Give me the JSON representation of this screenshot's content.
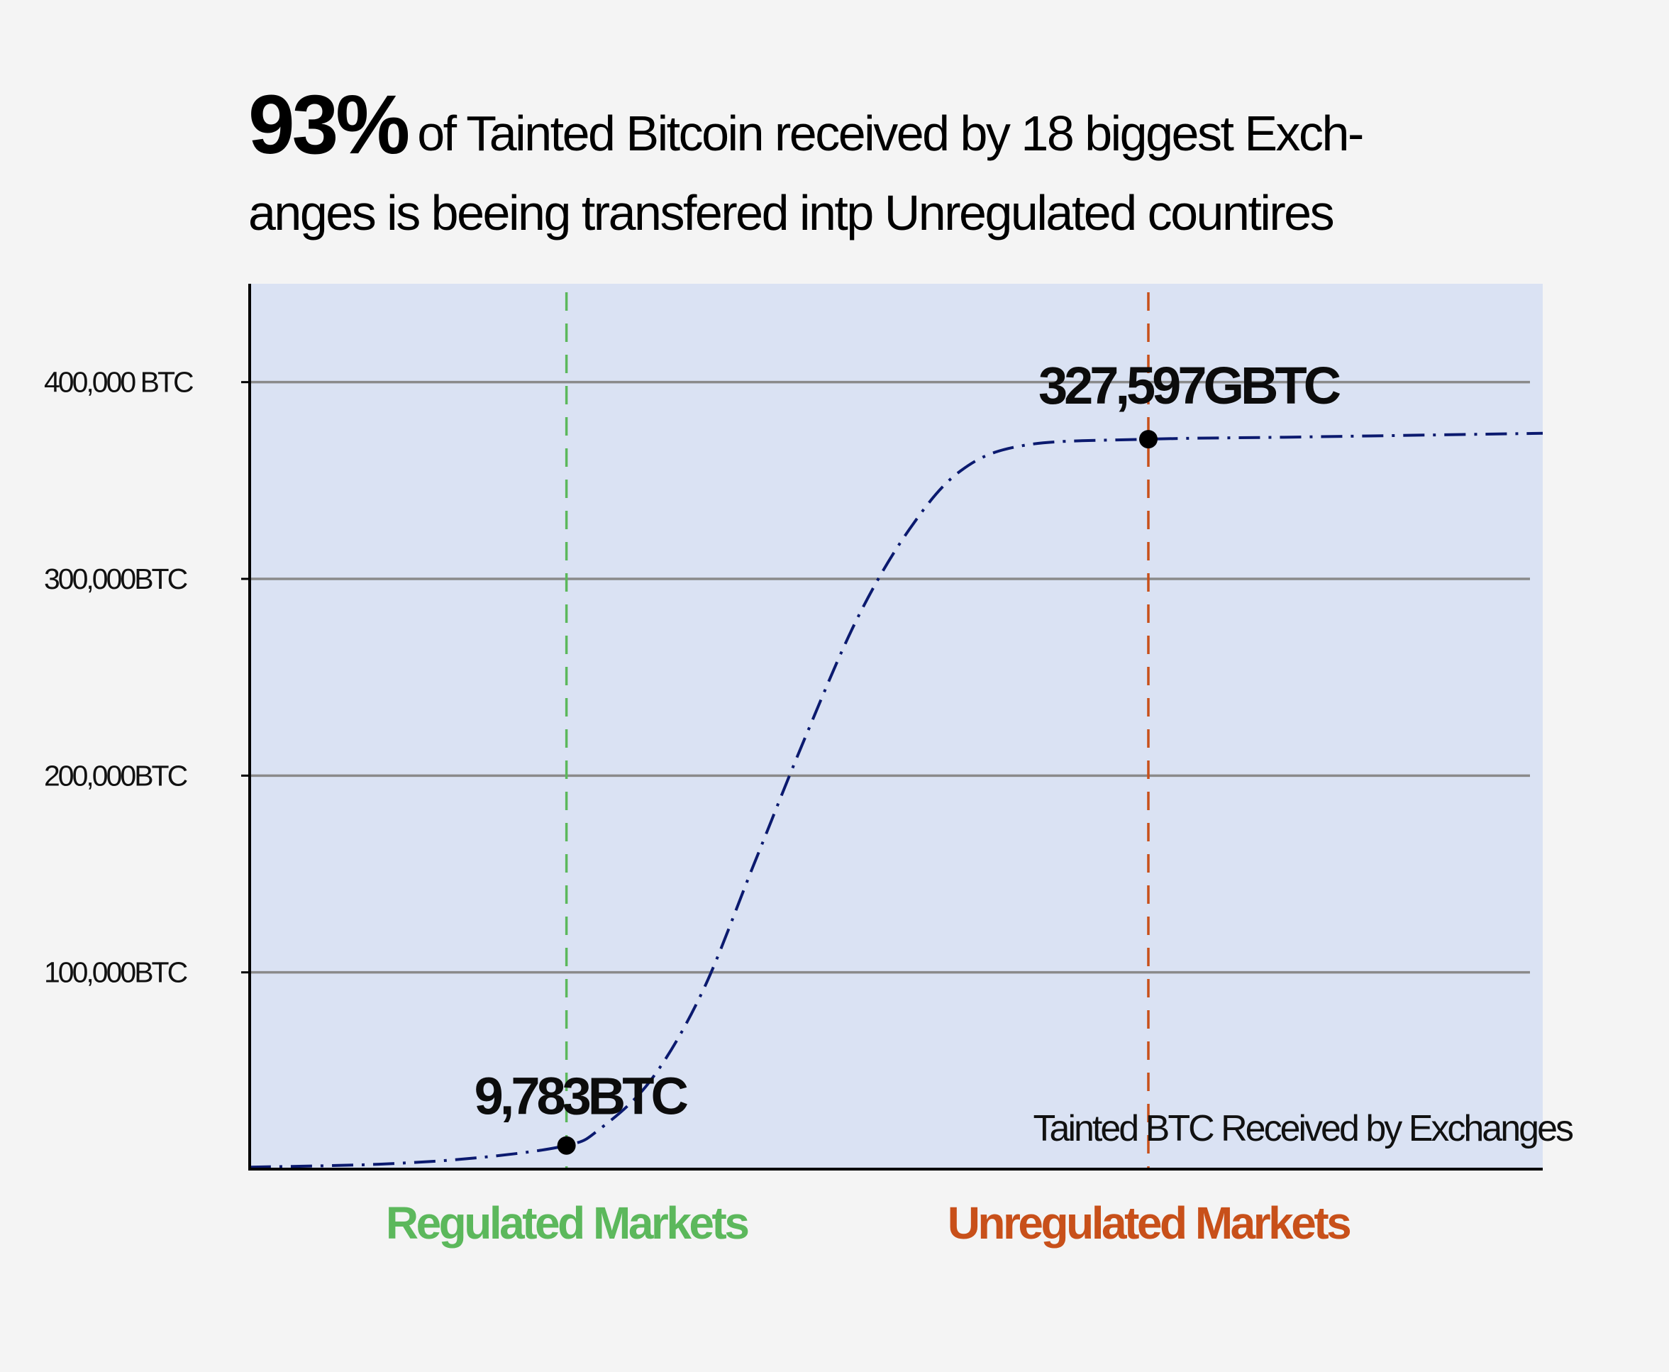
{
  "headline": {
    "highlight": "93%",
    "line1": "of Tainted Bitcoin received by 18 biggest Exch-",
    "line2": "anges is beeing transfered intp Unregulated countires"
  },
  "colors": {
    "background": "#f4f4f4",
    "plot_background": "#dae2f3",
    "grid": "#8a8a8a",
    "series_line": "#0b1a6f",
    "regulated": "#5cb85c",
    "unregulated": "#c8501a",
    "axis": "#000000",
    "marker": "#000000"
  },
  "chart_data": {
    "type": "line",
    "title": "93% of Tainted Bitcoin received by 18 biggest Exch-anges is beeing transfered intp Unregulated countires",
    "ylim": [
      0,
      450000
    ],
    "xlim": [
      0,
      100
    ],
    "grid": true,
    "y_ticks": [
      {
        "value": 100000,
        "label": "100,000BTC"
      },
      {
        "value": 200000,
        "label": "200,000BTC"
      },
      {
        "value": 300000,
        "label": "300,000BTC"
      },
      {
        "value": 400000,
        "label": "400,000 BTC"
      }
    ],
    "series": [
      {
        "name": "Tainted BTC Received by Exchanges",
        "line_style": "dash-dot",
        "points": [
          {
            "x": 0,
            "y": 1000
          },
          {
            "x": 10,
            "y": 2500
          },
          {
            "x": 18,
            "y": 6000
          },
          {
            "x": 24.5,
            "y": 12000
          },
          {
            "x": 27,
            "y": 20000
          },
          {
            "x": 31,
            "y": 45000
          },
          {
            "x": 35,
            "y": 90000
          },
          {
            "x": 39,
            "y": 155000
          },
          {
            "x": 43,
            "y": 220000
          },
          {
            "x": 47,
            "y": 280000
          },
          {
            "x": 51,
            "y": 325000
          },
          {
            "x": 55,
            "y": 355000
          },
          {
            "x": 60,
            "y": 368000
          },
          {
            "x": 69.5,
            "y": 371000
          },
          {
            "x": 80,
            "y": 372000
          },
          {
            "x": 90,
            "y": 373000
          },
          {
            "x": 100,
            "y": 374000
          }
        ]
      }
    ],
    "markers": [
      {
        "x": 24.5,
        "y": 12000,
        "label": "9,783BTC"
      },
      {
        "x": 69.5,
        "y": 371000,
        "label": "327,597GBTC"
      }
    ],
    "regions": [
      {
        "label": "Regulated Markets",
        "x": 24.5,
        "color": "#5cb85c"
      },
      {
        "label": "Unregulated Markets",
        "x": 69.5,
        "color": "#c8501a"
      }
    ],
    "legend": {
      "text": "Tainted BTC Received by Exchanges",
      "placement": "bottom-right"
    }
  }
}
